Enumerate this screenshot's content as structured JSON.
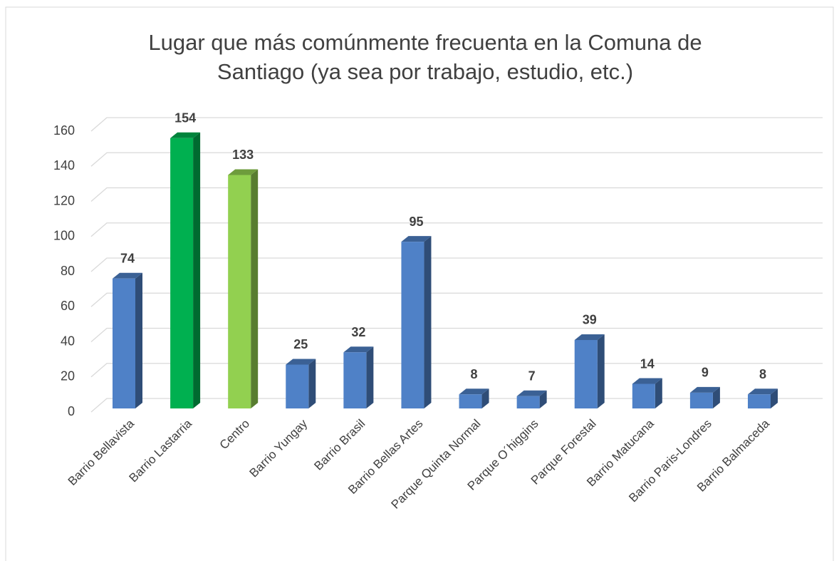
{
  "chart_data": {
    "type": "bar3d",
    "title": [
      "Lugar que más comúnmente frecuenta en la Comuna de",
      "Santiago (ya sea por trabajo, estudio, etc.)"
    ],
    "categories": [
      "Barrio Bellavista",
      "Barrio Lastarria",
      "Centro",
      "Barrio Yungay",
      "Barrio Brasil",
      "Barrio Bellas Artes",
      "Parque Quinta Normal",
      "Parque O´higgins",
      "Parque Forestal",
      "Barrio Matucana",
      "Barrio Paris-Londres",
      "Barrio Balmaceda"
    ],
    "values": [
      74,
      154,
      133,
      25,
      32,
      95,
      8,
      7,
      39,
      14,
      9,
      8
    ],
    "colors": [
      "#4f81c7",
      "#00b050",
      "#92d050",
      "#4f81c7",
      "#4f81c7",
      "#4f81c7",
      "#4f81c7",
      "#4f81c7",
      "#4f81c7",
      "#4f81c7",
      "#4f81c7",
      "#4f81c7"
    ],
    "ylim": [
      0,
      160
    ],
    "yticks": [
      0,
      20,
      40,
      60,
      80,
      100,
      120,
      140,
      160
    ],
    "grid": true
  }
}
